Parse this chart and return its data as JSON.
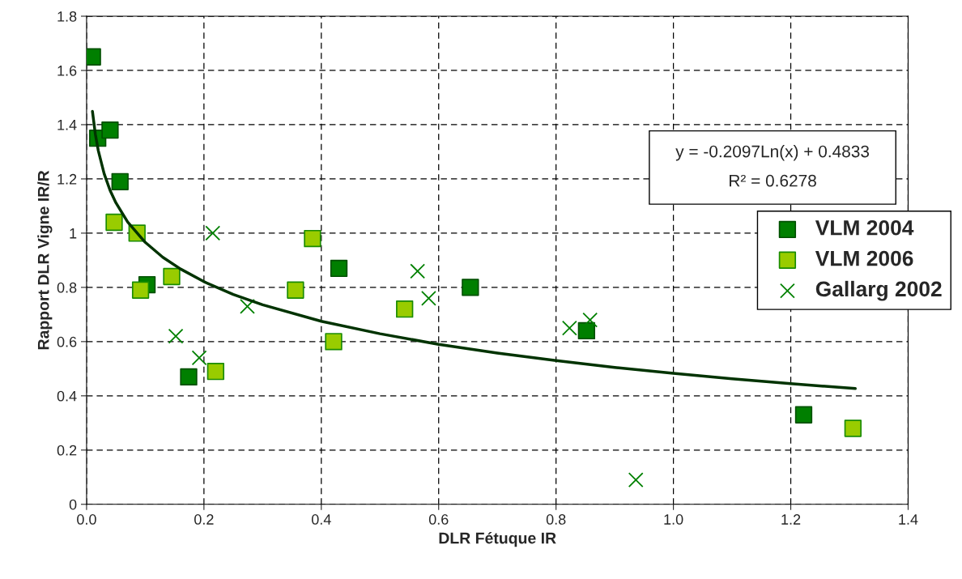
{
  "chart_data": {
    "type": "scatter",
    "xlabel": "DLR Fétuque IR",
    "ylabel": "Rapport DLR Vigne IR/R",
    "xlim": [
      0,
      1.4
    ],
    "xticks": [
      {
        "value": 0,
        "label": "0.0"
      },
      0.2,
      0.4,
      0.6,
      0.8,
      {
        "value": 1,
        "label": "1.0"
      },
      1.2,
      1.4
    ],
    "ylim": [
      0,
      1.8
    ],
    "yticks": [
      0,
      0.2,
      0.4,
      0.6,
      0.8,
      1,
      1.2,
      1.4,
      1.6,
      1.8
    ],
    "grid": true,
    "legend": "right",
    "series": [
      {
        "name": "VLM 2004",
        "marker": "square",
        "color": "#007f00",
        "x": [
          0.01,
          0.019,
          0.04,
          0.057,
          0.103,
          0.174,
          0.43,
          0.654,
          0.852,
          1.222
        ],
        "values": [
          1.65,
          1.35,
          1.38,
          1.19,
          0.81,
          0.47,
          0.87,
          0.8,
          0.64,
          0.33
        ]
      },
      {
        "name": "VLM 2006",
        "marker": "square",
        "color": "#99cc00",
        "x": [
          0.047,
          0.086,
          0.092,
          0.145,
          0.22,
          0.385,
          0.356,
          0.421,
          0.542,
          1.306
        ],
        "values": [
          1.04,
          1.0,
          0.79,
          0.84,
          0.49,
          0.98,
          0.79,
          0.6,
          0.72,
          0.28
        ]
      },
      {
        "name": "Gallarg 2002",
        "marker": "cross",
        "color": "#008000",
        "x": [
          0.215,
          0.274,
          0.152,
          0.192,
          0.564,
          0.583,
          0.823,
          0.858,
          0.936
        ],
        "values": [
          1.0,
          0.73,
          0.62,
          0.54,
          0.86,
          0.76,
          0.65,
          0.68,
          0.09
        ]
      },
      {
        "type": "line",
        "color": "#003300",
        "line_style": "solid",
        "marker": "none",
        "x": [
          0.01,
          0.015,
          0.02,
          0.03,
          0.04,
          0.05,
          0.07,
          0.1,
          0.13,
          0.16,
          0.2,
          0.25,
          0.3,
          0.4,
          0.5,
          0.6,
          0.7,
          0.8,
          0.9,
          1.0,
          1.1,
          1.2,
          1.31
        ],
        "values": [
          1.449,
          1.364,
          1.304,
          1.219,
          1.158,
          1.112,
          1.041,
          0.966,
          0.911,
          0.868,
          0.821,
          0.774,
          0.736,
          0.675,
          0.629,
          0.59,
          0.558,
          0.53,
          0.505,
          0.483,
          0.463,
          0.445,
          0.427
        ]
      }
    ],
    "annotations": [
      "y = -0.2097Ln(x) + 0.4833",
      "R² = 0.6278"
    ]
  }
}
